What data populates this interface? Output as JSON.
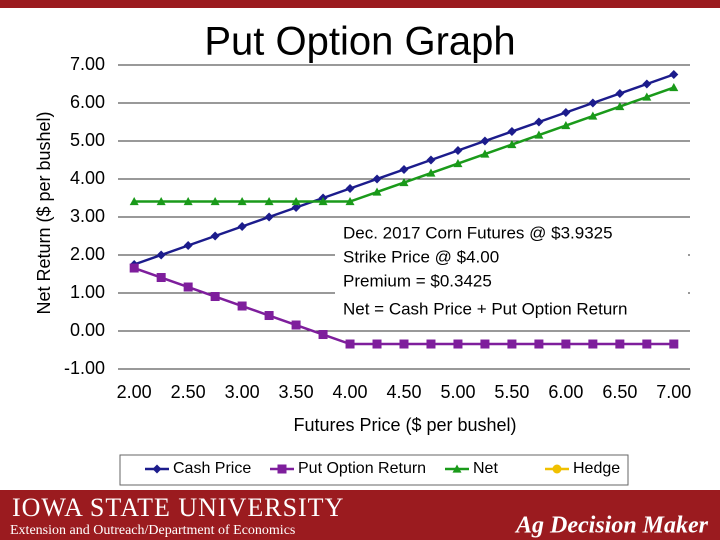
{
  "chart_data": {
    "type": "line",
    "title": "Put Option Graph",
    "x_label": "Futures Price ($ per bushel)",
    "y_label": "Net Return ($ per bushel)",
    "x": [
      2.0,
      2.25,
      2.5,
      2.75,
      3.0,
      3.25,
      3.5,
      3.75,
      4.0,
      4.25,
      4.5,
      4.75,
      5.0,
      5.25,
      5.5,
      5.75,
      6.0,
      6.25,
      6.5,
      6.75,
      7.0
    ],
    "series": [
      {
        "name": "Cash Price",
        "color": "#1c1c8c",
        "marker": "diamond",
        "values": [
          1.75,
          2.0,
          2.25,
          2.5,
          2.75,
          3.0,
          3.25,
          3.5,
          3.75,
          4.0,
          4.25,
          4.5,
          4.75,
          5.0,
          5.25,
          5.5,
          5.75,
          6.0,
          6.25,
          6.5,
          6.75
        ]
      },
      {
        "name": "Put Option Return",
        "color": "#7e1e9c",
        "marker": "square",
        "values": [
          1.6575,
          1.4075,
          1.1575,
          0.9075,
          0.6575,
          0.4075,
          0.1575,
          -0.0925,
          -0.3425,
          -0.3425,
          -0.3425,
          -0.3425,
          -0.3425,
          -0.3425,
          -0.3425,
          -0.3425,
          -0.3425,
          -0.3425,
          -0.3425,
          -0.3425,
          -0.3425
        ]
      },
      {
        "name": "Net",
        "color": "#1a9a1a",
        "marker": "triangle",
        "values": [
          3.4075,
          3.4075,
          3.4075,
          3.4075,
          3.4075,
          3.4075,
          3.4075,
          3.4075,
          3.4075,
          3.6575,
          3.9075,
          4.1575,
          4.4075,
          4.6575,
          4.9075,
          5.1575,
          5.4075,
          5.6575,
          5.9075,
          6.1575,
          6.4075
        ]
      },
      {
        "name": "Hedge",
        "color": "#f0c000",
        "marker": "circle",
        "values": [
          null,
          null,
          null,
          null,
          null,
          null,
          null,
          null,
          null,
          null,
          null,
          null,
          null,
          null,
          null,
          null,
          null,
          null,
          null,
          null,
          null
        ]
      }
    ],
    "xlim": [
      1.85,
      7.15
    ],
    "xticks": [
      {
        "value": 2,
        "label": "2.00"
      },
      {
        "value": 2.5,
        "label": "2.50"
      },
      {
        "value": 3,
        "label": "3.00"
      },
      {
        "value": 3.5,
        "label": "3.50"
      },
      {
        "value": 4,
        "label": "4.00"
      },
      {
        "value": 4.5,
        "label": "4.50"
      },
      {
        "value": 5,
        "label": "5.00"
      },
      {
        "value": 5.5,
        "label": "5.50"
      },
      {
        "value": 6,
        "label": "6.00"
      },
      {
        "value": 6.5,
        "label": "6.50"
      },
      {
        "value": 7,
        "label": "7.00"
      }
    ],
    "ylim": [
      -1,
      7
    ],
    "yticks": [
      {
        "value": -1,
        "label": "-1.00"
      },
      {
        "value": 0,
        "label": "0.00"
      },
      {
        "value": 1,
        "label": "1.00"
      },
      {
        "value": 2,
        "label": "2.00"
      },
      {
        "value": 3,
        "label": "3.00"
      },
      {
        "value": 4,
        "label": "4.00"
      },
      {
        "value": 5,
        "label": "5.00"
      },
      {
        "value": 6,
        "label": "6.00"
      },
      {
        "value": 7,
        "label": "7.00"
      }
    ],
    "grid": true,
    "legend": "bottom",
    "annotations": [
      "Dec. 2017 Corn Futures @ $3.9325",
      "Strike Price @ $4.00",
      "Premium = $0.3425",
      "Net = Cash Price + Put Option Return"
    ]
  },
  "footer": {
    "university": "IOWA STATE UNIVERSITY",
    "department": "Extension and Outreach/Department of Economics",
    "brand": "Ag Decision Maker"
  }
}
